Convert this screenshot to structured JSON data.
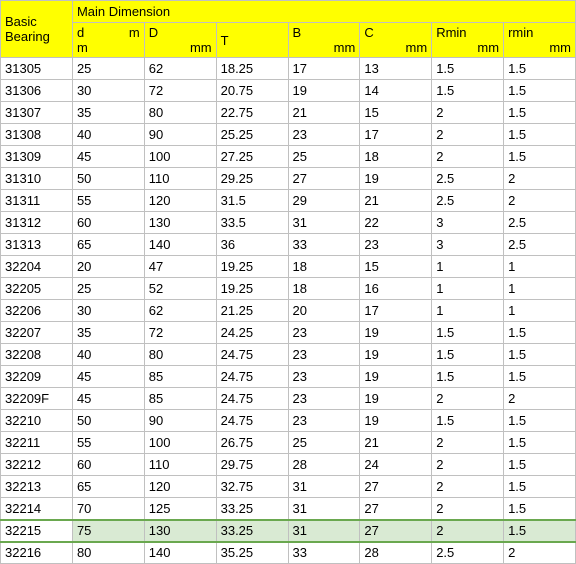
{
  "header": {
    "group1": "Basic Bearing",
    "group2": "Main Dimension",
    "cols": [
      {
        "l": "d",
        "r": "m",
        "u": "m"
      },
      {
        "l": "D",
        "r": "",
        "u": "mm"
      },
      {
        "l": "T",
        "r": "",
        "u": ""
      },
      {
        "l": "B",
        "r": "",
        "u": "mm"
      },
      {
        "l": "C",
        "r": "",
        "u": "mm"
      },
      {
        "l": "Rmin",
        "r": "",
        "u": "mm"
      },
      {
        "l": "rmin",
        "r": "",
        "u": "mm"
      }
    ]
  },
  "rows": [
    {
      "b": "31305",
      "d": "25",
      "D": "62",
      "T": "18.25",
      "B": "17",
      "C": "13",
      "Rmin": "1.5",
      "rmin": "1.5",
      "hl": false
    },
    {
      "b": "31306",
      "d": "30",
      "D": "72",
      "T": "20.75",
      "B": "19",
      "C": "14",
      "Rmin": "1.5",
      "rmin": "1.5",
      "hl": false
    },
    {
      "b": "31307",
      "d": "35",
      "D": "80",
      "T": "22.75",
      "B": "21",
      "C": "15",
      "Rmin": "2",
      "rmin": "1.5",
      "hl": false
    },
    {
      "b": "31308",
      "d": "40",
      "D": "90",
      "T": "25.25",
      "B": "23",
      "C": "17",
      "Rmin": "2",
      "rmin": "1.5",
      "hl": false
    },
    {
      "b": "31309",
      "d": "45",
      "D": "100",
      "T": "27.25",
      "B": "25",
      "C": "18",
      "Rmin": "2",
      "rmin": "1.5",
      "hl": false
    },
    {
      "b": "31310",
      "d": "50",
      "D": "110",
      "T": "29.25",
      "B": "27",
      "C": "19",
      "Rmin": "2.5",
      "rmin": "2",
      "hl": false
    },
    {
      "b": "31311",
      "d": "55",
      "D": "120",
      "T": "31.5",
      "B": "29",
      "C": "21",
      "Rmin": "2.5",
      "rmin": "2",
      "hl": false
    },
    {
      "b": "31312",
      "d": "60",
      "D": "130",
      "T": "33.5",
      "B": "31",
      "C": "22",
      "Rmin": "3",
      "rmin": "2.5",
      "hl": false
    },
    {
      "b": "31313",
      "d": "65",
      "D": "140",
      "T": "36",
      "B": "33",
      "C": "23",
      "Rmin": "3",
      "rmin": "2.5",
      "hl": false
    },
    {
      "b": "32204",
      "d": "20",
      "D": "47",
      "T": "19.25",
      "B": "18",
      "C": "15",
      "Rmin": "1",
      "rmin": "1",
      "hl": false
    },
    {
      "b": "32205",
      "d": "25",
      "D": "52",
      "T": "19.25",
      "B": "18",
      "C": "16",
      "Rmin": "1",
      "rmin": "1",
      "hl": false
    },
    {
      "b": "32206",
      "d": "30",
      "D": "62",
      "T": "21.25",
      "B": "20",
      "C": "17",
      "Rmin": "1",
      "rmin": "1",
      "hl": false
    },
    {
      "b": "32207",
      "d": "35",
      "D": "72",
      "T": "24.25",
      "B": "23",
      "C": "19",
      "Rmin": "1.5",
      "rmin": "1.5",
      "hl": false
    },
    {
      "b": "32208",
      "d": "40",
      "D": "80",
      "T": "24.75",
      "B": "23",
      "C": "19",
      "Rmin": "1.5",
      "rmin": "1.5",
      "hl": false
    },
    {
      "b": "32209",
      "d": "45",
      "D": "85",
      "T": "24.75",
      "B": "23",
      "C": "19",
      "Rmin": "1.5",
      "rmin": "1.5",
      "hl": false
    },
    {
      "b": "32209F",
      "d": "45",
      "D": "85",
      "T": "24.75",
      "B": "23",
      "C": "19",
      "Rmin": "2",
      "rmin": "2",
      "hl": false
    },
    {
      "b": "32210",
      "d": "50",
      "D": "90",
      "T": "24.75",
      "B": "23",
      "C": "19",
      "Rmin": "1.5",
      "rmin": "1.5",
      "hl": false
    },
    {
      "b": "32211",
      "d": "55",
      "D": "100",
      "T": "26.75",
      "B": "25",
      "C": "21",
      "Rmin": "2",
      "rmin": "1.5",
      "hl": false
    },
    {
      "b": "32212",
      "d": "60",
      "D": "110",
      "T": "29.75",
      "B": "28",
      "C": "24",
      "Rmin": "2",
      "rmin": "1.5",
      "hl": false
    },
    {
      "b": "32213",
      "d": "65",
      "D": "120",
      "T": "32.75",
      "B": "31",
      "C": "27",
      "Rmin": "2",
      "rmin": "1.5",
      "hl": false
    },
    {
      "b": "32214",
      "d": "70",
      "D": "125",
      "T": "33.25",
      "B": "31",
      "C": "27",
      "Rmin": "2",
      "rmin": "1.5",
      "hl": false
    },
    {
      "b": "32215",
      "d": "75",
      "D": "130",
      "T": "33.25",
      "B": "31",
      "C": "27",
      "Rmin": "2",
      "rmin": "1.5",
      "hl": true
    },
    {
      "b": "32216",
      "d": "80",
      "D": "140",
      "T": "35.25",
      "B": "33",
      "C": "28",
      "Rmin": "2.5",
      "rmin": "2",
      "hl": false
    }
  ],
  "styles": {
    "header_bg": "#ffff00",
    "border_color": "#c0c0c0",
    "highlight_bg": "#d9ead3",
    "highlight_border": "#6aa84f",
    "font_size": 13,
    "font_family": "Arial"
  }
}
